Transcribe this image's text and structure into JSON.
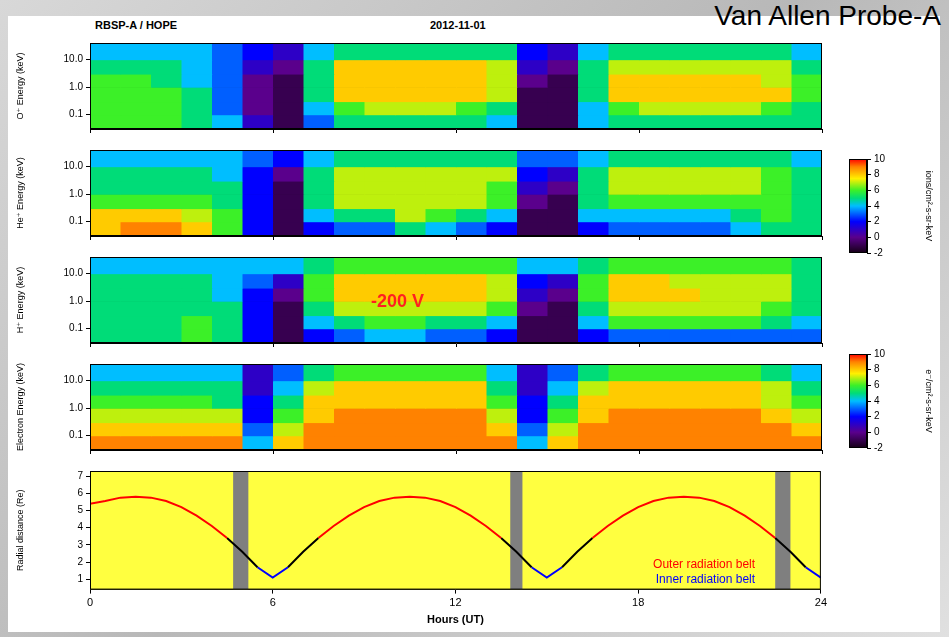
{
  "header": {
    "left": "RBSP-A / HOPE",
    "center": "2012-11-01",
    "right": "Van Allen Probe-A"
  },
  "chart_data": [
    {
      "type": "heatmap",
      "log": "y",
      "tick_labels": "y",
      "colorbar": {
        "label": "ions/cm²-s-sr-keV",
        "range": [
          -2,
          10
        ],
        "ticks": [
          -2,
          0,
          2,
          4,
          6,
          8,
          10
        ]
      },
      "xlim": [
        0,
        24
      ],
      "xticks": [
        0,
        6,
        12,
        18,
        24
      ],
      "ylim": [
        0.03,
        40
      ],
      "yticks": [
        0.1,
        {
          "value": 1,
          "label": "1.0"
        },
        {
          "value": 10,
          "label": "10.0"
        }
      ],
      "x_bins": [
        0,
        1,
        2,
        3,
        4,
        5,
        6,
        7,
        8,
        9,
        10,
        11,
        12,
        13,
        14,
        15,
        16,
        17,
        18,
        19,
        20,
        21,
        22,
        23,
        24
      ],
      "y_bins": [
        0.03,
        0.1,
        0.3,
        1,
        3,
        10,
        40
      ],
      "panels": [
        {
          "y_label": "O⁺ Energy (keV)",
          "cells": [
            [
              6,
              6,
              6,
              5,
              4,
              1,
              -1,
              3,
              5,
              5,
              5,
              5,
              5,
              4,
              -1,
              -1,
              4,
              5,
              5,
              5,
              5,
              5,
              5,
              5
            ],
            [
              6,
              6,
              6,
              5,
              3,
              0,
              -1,
              4,
              6,
              7,
              7,
              7,
              6,
              5,
              -1,
              -1,
              4,
              6,
              7,
              7,
              7,
              7,
              6,
              5
            ],
            [
              6,
              6,
              6,
              5,
              3,
              0,
              -1,
              5,
              8,
              8,
              8,
              8,
              8,
              7,
              -1,
              -1,
              5,
              8,
              8,
              8,
              8,
              8,
              8,
              6
            ],
            [
              6,
              6,
              5,
              4,
              3,
              0,
              -1,
              5,
              8,
              8,
              8,
              8,
              8,
              7,
              0,
              -1,
              5,
              8,
              8,
              8,
              8,
              8,
              7,
              6
            ],
            [
              5,
              5,
              5,
              4,
              3,
              1,
              0,
              5,
              8,
              8,
              8,
              8,
              8,
              7,
              1,
              0,
              5,
              7,
              7,
              7,
              7,
              7,
              7,
              5
            ],
            [
              4,
              4,
              4,
              4,
              3,
              2,
              1,
              4,
              5,
              5,
              5,
              5,
              5,
              5,
              2,
              1,
              4,
              5,
              5,
              5,
              5,
              5,
              5,
              4
            ]
          ]
        },
        {
          "y_label": "He⁺ Energy (keV)",
          "cells": [
            [
              8,
              9,
              9,
              8,
              6,
              2,
              -1,
              2,
              3,
              3,
              5,
              4,
              3,
              2,
              -1,
              -1,
              2,
              3,
              3,
              3,
              3,
              4,
              5,
              5
            ],
            [
              8,
              8,
              8,
              7,
              6,
              2,
              -1,
              4,
              5,
              5,
              7,
              6,
              5,
              4,
              -1,
              -1,
              4,
              4,
              4,
              4,
              4,
              5,
              6,
              5
            ],
            [
              6,
              6,
              6,
              6,
              5,
              2,
              -1,
              5,
              7,
              7,
              7,
              7,
              7,
              6,
              0,
              -1,
              5,
              6,
              6,
              6,
              6,
              6,
              6,
              5
            ],
            [
              5,
              5,
              5,
              5,
              5,
              2,
              -1,
              5,
              7,
              7,
              7,
              7,
              7,
              6,
              1,
              0,
              5,
              7,
              7,
              7,
              7,
              7,
              6,
              5
            ],
            [
              5,
              5,
              5,
              5,
              4,
              2,
              0,
              5,
              7,
              7,
              7,
              7,
              7,
              7,
              2,
              1,
              5,
              7,
              7,
              7,
              7,
              7,
              6,
              5
            ],
            [
              4,
              4,
              4,
              4,
              4,
              3,
              2,
              4,
              5,
              5,
              5,
              5,
              5,
              5,
              3,
              3,
              4,
              5,
              5,
              5,
              5,
              5,
              5,
              4
            ]
          ]
        },
        {
          "y_label": "H⁺ Energy (keV)",
          "annotation": "-200 V",
          "cells": [
            [
              5,
              5,
              5,
              6,
              5,
              2,
              -1,
              2,
              3,
              4,
              4,
              3,
              3,
              2,
              -1,
              -1,
              2,
              3,
              3,
              3,
              3,
              3,
              3,
              3
            ],
            [
              5,
              5,
              5,
              6,
              5,
              2,
              -1,
              4,
              5,
              6,
              6,
              5,
              5,
              4,
              -1,
              -1,
              4,
              6,
              6,
              6,
              6,
              6,
              5,
              4
            ],
            [
              5,
              5,
              5,
              5,
              5,
              2,
              -1,
              5,
              7,
              7,
              7,
              7,
              7,
              6,
              0,
              -1,
              5,
              7,
              7,
              7,
              7,
              7,
              6,
              5
            ],
            [
              5,
              5,
              5,
              5,
              4,
              2,
              0,
              6,
              8,
              8,
              8,
              8,
              8,
              7,
              1,
              0,
              6,
              8,
              8,
              8,
              7,
              7,
              7,
              5
            ],
            [
              5,
              5,
              5,
              5,
              4,
              3,
              1,
              6,
              8,
              8,
              8,
              8,
              8,
              7,
              2,
              1,
              6,
              8,
              8,
              7,
              7,
              7,
              7,
              5
            ],
            [
              4,
              4,
              4,
              4,
              4,
              4,
              4,
              5,
              6,
              6,
              6,
              6,
              6,
              6,
              4,
              4,
              5,
              6,
              6,
              6,
              6,
              6,
              6,
              5
            ]
          ]
        }
      ]
    },
    {
      "type": "heatmap",
      "log": "y",
      "tick_labels": "y",
      "colorbar": {
        "label": "e⁻/cm²-s-sr-keV",
        "range": [
          -2,
          10
        ],
        "ticks": [
          -2,
          0,
          2,
          4,
          6,
          8,
          10
        ]
      },
      "xlim": [
        0,
        24
      ],
      "xticks": [
        0,
        6,
        12,
        18,
        24
      ],
      "ylim": [
        0.03,
        40
      ],
      "yticks": [
        0.1,
        {
          "value": 1,
          "label": "1.0"
        },
        {
          "value": 10,
          "label": "10.0"
        }
      ],
      "x_bins": [
        0,
        1,
        2,
        3,
        4,
        5,
        6,
        7,
        8,
        9,
        10,
        11,
        12,
        13,
        14,
        15,
        16,
        17,
        18,
        19,
        20,
        21,
        22,
        23,
        24
      ],
      "y_bins": [
        0.03,
        0.1,
        0.3,
        1,
        3,
        10,
        40
      ],
      "panels": [
        {
          "y_label": "Electron Energy (keV)",
          "cells": [
            [
              9,
              9,
              9,
              9,
              9,
              4,
              8,
              9,
              9,
              9,
              9,
              9,
              9,
              9,
              4,
              8,
              9,
              9,
              9,
              9,
              9,
              9,
              9,
              9
            ],
            [
              8,
              8,
              8,
              8,
              8,
              3,
              7,
              9,
              9,
              9,
              9,
              9,
              9,
              8,
              3,
              7,
              9,
              9,
              9,
              9,
              9,
              9,
              9,
              8
            ],
            [
              7,
              7,
              7,
              7,
              7,
              2,
              6,
              8,
              9,
              9,
              9,
              9,
              9,
              7,
              2,
              6,
              8,
              9,
              9,
              9,
              9,
              9,
              8,
              7
            ],
            [
              6,
              6,
              6,
              6,
              5,
              2,
              5,
              8,
              8,
              8,
              8,
              8,
              8,
              6,
              2,
              5,
              8,
              8,
              8,
              8,
              8,
              8,
              7,
              6
            ],
            [
              5,
              5,
              5,
              5,
              5,
              1,
              4,
              7,
              8,
              8,
              8,
              8,
              8,
              5,
              1,
              4,
              7,
              8,
              8,
              8,
              8,
              8,
              7,
              5
            ],
            [
              4,
              4,
              4,
              4,
              4,
              1,
              3,
              5,
              6,
              6,
              6,
              6,
              6,
              4,
              1,
              3,
              5,
              6,
              6,
              6,
              6,
              6,
              5,
              4
            ]
          ]
        }
      ]
    },
    {
      "type": "line",
      "x_label": "Hours (UT)",
      "y_label": "Radial distance (Re)",
      "xlim": [
        0,
        24
      ],
      "xticks": [
        0,
        6,
        12,
        18,
        24
      ],
      "ylim": [
        0.4,
        7.3
      ],
      "yticks": [
        1,
        2,
        3,
        4,
        5,
        6,
        7
      ],
      "legend": "lower right",
      "shaded": [
        [
          4.7,
          5.2
        ],
        [
          13.8,
          14.2
        ],
        [
          22.5,
          23.0
        ]
      ],
      "x": [
        0,
        0.5,
        1,
        1.5,
        2,
        2.5,
        3,
        3.5,
        4,
        4.5,
        5,
        5.5,
        6,
        6.5,
        7,
        7.5,
        8,
        8.5,
        9,
        9.5,
        10,
        10.5,
        11,
        11.5,
        12,
        12.5,
        13,
        13.5,
        14,
        14.5,
        15,
        15.5,
        16,
        16.5,
        17,
        17.5,
        18,
        18.5,
        19,
        19.5,
        20,
        20.5,
        21,
        21.5,
        22,
        22.5,
        23,
        23.5,
        24
      ],
      "series": [
        {
          "name": "Outer radiation belt",
          "color": "#ff0000",
          "values": [
            5.4,
            5.55,
            5.75,
            5.8,
            5.75,
            5.55,
            5.2,
            4.7,
            4.1,
            3.4,
            null,
            null,
            null,
            null,
            null,
            3.4,
            4.1,
            4.7,
            5.2,
            5.55,
            5.75,
            5.8,
            5.75,
            5.55,
            5.2,
            4.7,
            4.1,
            3.4,
            null,
            null,
            null,
            null,
            null,
            3.4,
            4.1,
            4.7,
            5.2,
            5.55,
            5.75,
            5.8,
            5.75,
            5.55,
            5.2,
            4.7,
            4.1,
            3.4,
            null,
            null,
            null
          ]
        },
        {
          "color": "#000000",
          "values": [
            null,
            null,
            null,
            null,
            null,
            null,
            null,
            null,
            null,
            3.4,
            2.6,
            1.7,
            null,
            1.7,
            2.6,
            3.4,
            null,
            null,
            null,
            null,
            null,
            null,
            null,
            null,
            null,
            null,
            null,
            3.4,
            2.6,
            1.7,
            null,
            1.7,
            2.6,
            3.4,
            null,
            null,
            null,
            null,
            null,
            null,
            null,
            null,
            null,
            null,
            null,
            3.4,
            2.6,
            1.7,
            null
          ]
        },
        {
          "name": "Inner radiation belt",
          "color": "#0000ff",
          "values": [
            null,
            null,
            null,
            null,
            null,
            null,
            null,
            null,
            null,
            null,
            null,
            1.7,
            1.1,
            1.7,
            null,
            null,
            null,
            null,
            null,
            null,
            null,
            null,
            null,
            null,
            null,
            null,
            null,
            null,
            null,
            1.7,
            1.1,
            1.7,
            null,
            null,
            null,
            null,
            null,
            null,
            null,
            null,
            null,
            null,
            null,
            null,
            null,
            null,
            null,
            1.7,
            1.1
          ]
        }
      ]
    }
  ]
}
